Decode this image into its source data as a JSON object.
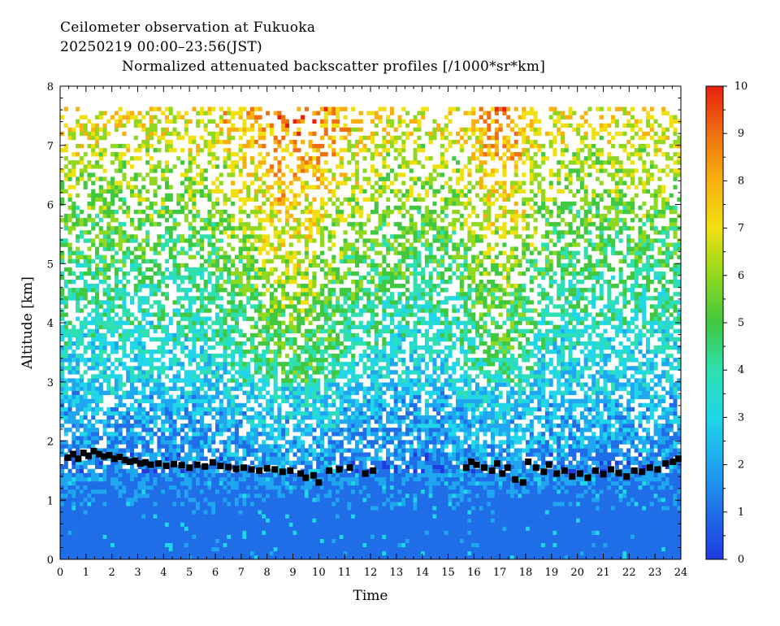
{
  "title": "Ceilometer observation at Fukuoka",
  "subtitle": "20250219  00:00–23:56(JST)",
  "product_title": "Normalized attenuated backscatter profiles [/1000*sr*km]",
  "chart_data": {
    "type": "heatmap",
    "xlabel": "Time",
    "ylabel": "Altitude [km]",
    "xlim": [
      0,
      24
    ],
    "ylim": [
      0,
      8
    ],
    "x_ticks": [
      0,
      1,
      2,
      3,
      4,
      5,
      6,
      7,
      8,
      9,
      10,
      11,
      12,
      13,
      14,
      15,
      16,
      17,
      18,
      19,
      20,
      21,
      22,
      23,
      24
    ],
    "y_ticks": [
      0,
      1,
      2,
      3,
      4,
      5,
      6,
      7,
      8
    ],
    "colorbar": {
      "ticks": [
        0,
        1,
        2,
        3,
        4,
        5,
        6,
        7,
        8,
        9,
        10
      ],
      "range": [
        0,
        10
      ],
      "colors": [
        "#1f3be0",
        "#1f6ee8",
        "#1fa6f0",
        "#20d6e8",
        "#2ee0b0",
        "#40c840",
        "#90d820",
        "#f0e010",
        "#f8b010",
        "#f07010",
        "#e82010"
      ]
    },
    "data_top_altitude_km": 7.65,
    "cloud_base_points": [
      [
        0.3,
        1.72
      ],
      [
        0.5,
        1.78
      ],
      [
        0.7,
        1.7
      ],
      [
        0.9,
        1.8
      ],
      [
        1.1,
        1.75
      ],
      [
        1.3,
        1.83
      ],
      [
        1.5,
        1.78
      ],
      [
        1.7,
        1.74
      ],
      [
        1.9,
        1.76
      ],
      [
        2.1,
        1.7
      ],
      [
        2.3,
        1.73
      ],
      [
        2.5,
        1.68
      ],
      [
        2.7,
        1.65
      ],
      [
        2.9,
        1.67
      ],
      [
        3.1,
        1.62
      ],
      [
        3.3,
        1.64
      ],
      [
        3.5,
        1.6
      ],
      [
        3.8,
        1.62
      ],
      [
        4.1,
        1.58
      ],
      [
        4.4,
        1.61
      ],
      [
        4.7,
        1.59
      ],
      [
        5.0,
        1.55
      ],
      [
        5.3,
        1.6
      ],
      [
        5.6,
        1.57
      ],
      [
        5.9,
        1.64
      ],
      [
        6.2,
        1.58
      ],
      [
        6.5,
        1.56
      ],
      [
        6.8,
        1.53
      ],
      [
        7.1,
        1.55
      ],
      [
        7.4,
        1.52
      ],
      [
        7.7,
        1.5
      ],
      [
        8.0,
        1.54
      ],
      [
        8.3,
        1.52
      ],
      [
        8.6,
        1.48
      ],
      [
        8.9,
        1.5
      ],
      [
        9.3,
        1.45
      ],
      [
        9.5,
        1.38
      ],
      [
        9.8,
        1.42
      ],
      [
        10.0,
        1.3
      ],
      [
        10.4,
        1.5
      ],
      [
        10.8,
        1.52
      ],
      [
        11.2,
        1.55
      ],
      [
        11.8,
        1.45
      ],
      [
        12.1,
        1.5
      ],
      [
        15.7,
        1.55
      ],
      [
        15.9,
        1.65
      ],
      [
        16.1,
        1.6
      ],
      [
        16.4,
        1.55
      ],
      [
        16.7,
        1.5
      ],
      [
        16.9,
        1.62
      ],
      [
        17.1,
        1.45
      ],
      [
        17.3,
        1.55
      ],
      [
        17.6,
        1.35
      ],
      [
        17.9,
        1.3
      ],
      [
        18.1,
        1.65
      ],
      [
        18.4,
        1.55
      ],
      [
        18.7,
        1.48
      ],
      [
        18.9,
        1.6
      ],
      [
        19.2,
        1.45
      ],
      [
        19.5,
        1.5
      ],
      [
        19.8,
        1.4
      ],
      [
        20.1,
        1.45
      ],
      [
        20.4,
        1.38
      ],
      [
        20.7,
        1.5
      ],
      [
        21.0,
        1.44
      ],
      [
        21.3,
        1.52
      ],
      [
        21.6,
        1.46
      ],
      [
        21.9,
        1.4
      ],
      [
        22.2,
        1.5
      ],
      [
        22.5,
        1.48
      ],
      [
        22.8,
        1.55
      ],
      [
        23.1,
        1.52
      ],
      [
        23.4,
        1.62
      ],
      [
        23.7,
        1.65
      ],
      [
        23.9,
        1.7
      ]
    ]
  }
}
